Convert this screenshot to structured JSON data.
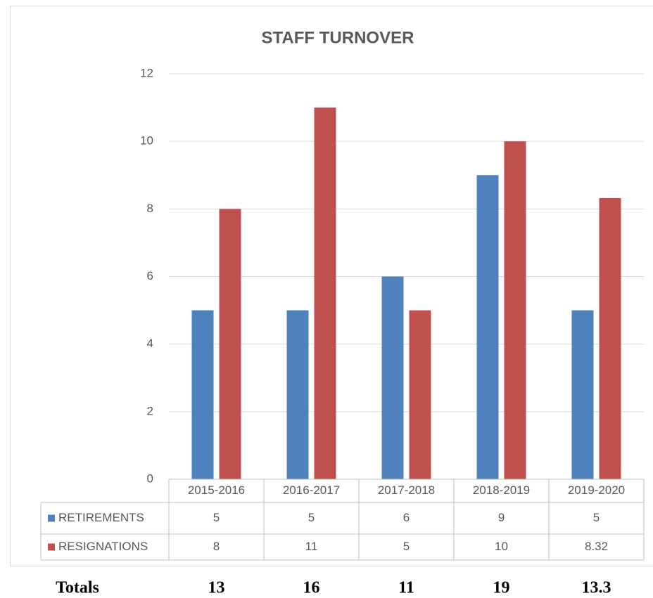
{
  "chart_data": {
    "type": "bar",
    "title": "STAFF TURNOVER",
    "categories": [
      "2015-2016",
      "2016-2017",
      "2017-2018",
      "2018-2019",
      "2019-2020"
    ],
    "series": [
      {
        "name": "RETIREMENTS",
        "color": "#4f81bd",
        "values": [
          5,
          5,
          6,
          9,
          5
        ]
      },
      {
        "name": "RESIGNATIONS",
        "color": "#c0504d",
        "values": [
          8,
          11,
          5,
          10,
          8.32
        ]
      }
    ],
    "ylim": [
      0,
      12
    ],
    "yticks": [
      0,
      2,
      4,
      6,
      8,
      10,
      12
    ],
    "grid": true,
    "data_table": true
  },
  "totals": {
    "label": "Totals",
    "values": [
      13,
      16,
      11,
      19,
      13.3
    ]
  }
}
